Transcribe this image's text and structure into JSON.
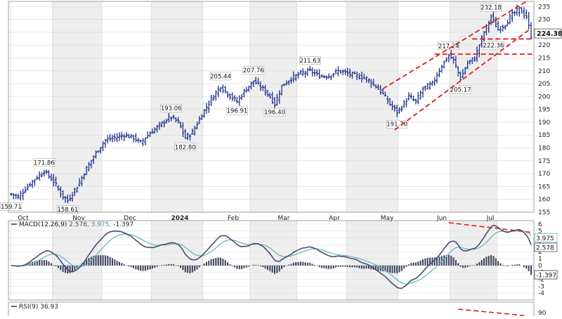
{
  "chart_data": [
    {
      "type": "ohlc",
      "panel": "price",
      "last_value_label": "224.38",
      "ylim": [
        155,
        237
      ],
      "y_ticks": [
        155,
        160,
        165,
        170,
        175,
        180,
        185,
        190,
        195,
        200,
        205,
        210,
        215,
        220,
        225,
        230,
        235
      ],
      "month_labels": [
        "Oct",
        "Nov",
        "Dec",
        "2024",
        "Feb",
        "Mar",
        "Apr",
        "May",
        "Jun",
        "Jul"
      ],
      "grid": true,
      "alternate_month_shading": true,
      "series_color": "#1a2f8a",
      "annotation_color": "#e01b1b",
      "annotations": [
        {
          "label": "159.71",
          "value": 159.71,
          "day": 0
        },
        {
          "label": "171.86",
          "value": 171.86,
          "day": 14
        },
        {
          "label": "158.61",
          "value": 158.61,
          "day": 24
        },
        {
          "label": "193.06",
          "value": 193.06,
          "day": 68
        },
        {
          "label": "182.80",
          "value": 182.8,
          "day": 74
        },
        {
          "label": "205.44",
          "value": 205.44,
          "day": 89
        },
        {
          "label": "196.91",
          "value": 196.91,
          "day": 96
        },
        {
          "label": "207.76",
          "value": 207.76,
          "day": 103
        },
        {
          "label": "196.40",
          "value": 196.4,
          "day": 112
        },
        {
          "label": "211.63",
          "value": 211.63,
          "day": 127
        },
        {
          "label": "191.70",
          "value": 191.7,
          "day": 164
        },
        {
          "label": "217.24",
          "value": 217.24,
          "day": 186
        },
        {
          "label": "205.17",
          "value": 205.17,
          "day": 191
        },
        {
          "label": "232.18",
          "value": 232.18,
          "day": 204
        },
        {
          "label": "222.36",
          "value": 222.36,
          "day": 205
        }
      ],
      "anchors": [
        [
          0,
          162
        ],
        [
          3,
          161
        ],
        [
          6,
          164
        ],
        [
          9,
          167
        ],
        [
          14,
          171
        ],
        [
          18,
          167
        ],
        [
          22,
          161
        ],
        [
          24,
          159.5
        ],
        [
          28,
          165
        ],
        [
          32,
          172
        ],
        [
          36,
          178
        ],
        [
          40,
          183
        ],
        [
          44,
          184
        ],
        [
          48,
          185
        ],
        [
          52,
          184
        ],
        [
          55,
          182
        ],
        [
          58,
          185
        ],
        [
          62,
          188
        ],
        [
          66,
          191
        ],
        [
          68,
          192
        ],
        [
          71,
          190
        ],
        [
          74,
          184
        ],
        [
          77,
          186
        ],
        [
          81,
          193
        ],
        [
          85,
          199
        ],
        [
          89,
          204
        ],
        [
          92,
          201
        ],
        [
          96,
          198
        ],
        [
          99,
          202
        ],
        [
          103,
          206
        ],
        [
          107,
          203
        ],
        [
          110,
          200
        ],
        [
          112,
          197
        ],
        [
          115,
          204
        ],
        [
          119,
          207
        ],
        [
          123,
          209
        ],
        [
          127,
          210
        ],
        [
          131,
          208
        ],
        [
          135,
          208
        ],
        [
          139,
          210
        ],
        [
          143,
          209
        ],
        [
          147,
          208
        ],
        [
          151,
          207
        ],
        [
          155,
          204
        ],
        [
          158,
          201
        ],
        [
          161,
          197
        ],
        [
          164,
          194
        ],
        [
          166,
          196
        ],
        [
          169,
          200
        ],
        [
          172,
          198
        ],
        [
          175,
          203
        ],
        [
          179,
          205
        ],
        [
          183,
          212
        ],
        [
          186,
          216
        ],
        [
          188,
          214
        ],
        [
          191,
          207
        ],
        [
          194,
          213
        ],
        [
          197,
          215
        ],
        [
          199,
          220
        ],
        [
          201,
          225
        ],
        [
          204,
          231
        ],
        [
          207,
          226
        ],
        [
          210,
          228
        ],
        [
          213,
          232
        ],
        [
          216,
          234
        ],
        [
          219,
          231
        ],
        [
          221,
          223.5
        ]
      ]
    },
    {
      "type": "line",
      "panel": "macd",
      "title": "MACD(12,26,9) 2.578, 3.975, -1.397",
      "macd_value": "2.578",
      "signal_value": "3.975",
      "hist_value": "-1.397",
      "value_labels": [
        "3.975",
        "2.578",
        "-1.397"
      ],
      "ylim": [
        -5,
        6.5
      ],
      "y_ticks": [
        -4,
        -3,
        -2,
        -1,
        0,
        1,
        2,
        3,
        4,
        5,
        6
      ],
      "macd_color": "#4a4e6e",
      "signal_color": "#58b8c0",
      "histogram_color": "#3c3f5c",
      "annotation_color": "#e01b1b"
    },
    {
      "type": "line",
      "panel": "rsi",
      "title": "RSI(9) 36.93",
      "y_ticks": [
        90
      ],
      "annotation_color": "#e01b1b"
    }
  ]
}
